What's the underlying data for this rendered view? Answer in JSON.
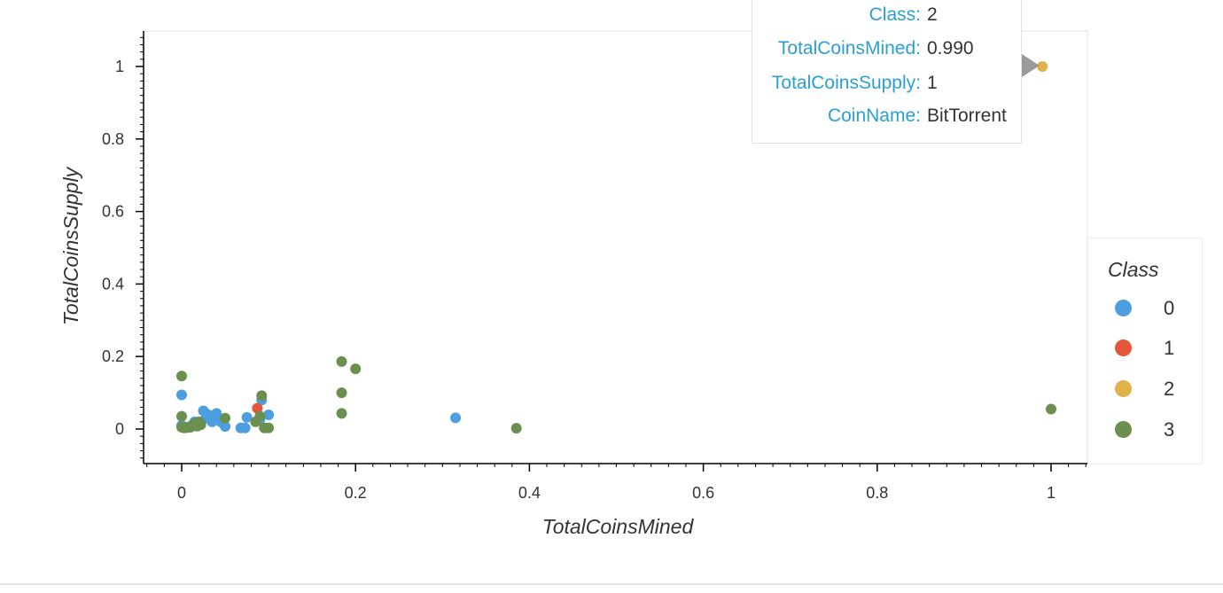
{
  "chart_data": {
    "type": "scatter",
    "title": "",
    "xlabel": "TotalCoinsMined",
    "ylabel": "TotalCoinsSupply",
    "xlim": [
      -0.04,
      1.06
    ],
    "ylim": [
      -0.09,
      1.09
    ],
    "x_ticks": [
      {
        "value": 0,
        "label": "0"
      },
      {
        "value": 0.2,
        "label": "0.2"
      },
      {
        "value": 0.4,
        "label": "0.4"
      },
      {
        "value": 0.6,
        "label": "0.6"
      },
      {
        "value": 0.8,
        "label": "0.8"
      },
      {
        "value": 1,
        "label": "1"
      }
    ],
    "y_ticks": [
      {
        "value": 0,
        "label": "0"
      },
      {
        "value": 0.2,
        "label": "0.2"
      },
      {
        "value": 0.4,
        "label": "0.4"
      },
      {
        "value": 0.6,
        "label": "0.6"
      },
      {
        "value": 0.8,
        "label": "0.8"
      },
      {
        "value": 1,
        "label": "1"
      }
    ],
    "grid": false,
    "legend": {
      "title": "Class",
      "placement": "right"
    },
    "series": [
      {
        "name": "0",
        "color": "#4c9ede",
        "points": [
          [
            0.0,
            0.094
          ],
          [
            0.0,
            0.01
          ],
          [
            0.005,
            0.005
          ],
          [
            0.012,
            0.008
          ],
          [
            0.015,
            0.02
          ],
          [
            0.02,
            0.012
          ],
          [
            0.025,
            0.05
          ],
          [
            0.028,
            0.03
          ],
          [
            0.03,
            0.04
          ],
          [
            0.035,
            0.02
          ],
          [
            0.038,
            0.028
          ],
          [
            0.04,
            0.043
          ],
          [
            0.042,
            0.03
          ],
          [
            0.045,
            0.02
          ],
          [
            0.05,
            0.007
          ],
          [
            0.068,
            0.003
          ],
          [
            0.073,
            0.003
          ],
          [
            0.075,
            0.032
          ],
          [
            0.09,
            0.025
          ],
          [
            0.092,
            0.08
          ],
          [
            0.1,
            0.039
          ],
          [
            0.315,
            0.031
          ]
        ]
      },
      {
        "name": "1",
        "color": "#e4573b",
        "points": [
          [
            0.087,
            0.057
          ]
        ]
      },
      {
        "name": "2",
        "color": "#e2b24a",
        "points": [
          [
            0.99,
            1.0
          ]
        ]
      },
      {
        "name": "3",
        "color": "#6b8f4e",
        "points": [
          [
            0.0,
            0.146
          ],
          [
            0.0,
            0.035
          ],
          [
            0.0,
            0.005
          ],
          [
            0.003,
            0.003
          ],
          [
            0.006,
            0.004
          ],
          [
            0.01,
            0.005
          ],
          [
            0.012,
            0.01
          ],
          [
            0.015,
            0.015
          ],
          [
            0.018,
            0.008
          ],
          [
            0.02,
            0.02
          ],
          [
            0.022,
            0.012
          ],
          [
            0.05,
            0.03
          ],
          [
            0.085,
            0.02
          ],
          [
            0.09,
            0.035
          ],
          [
            0.092,
            0.092
          ],
          [
            0.095,
            0.003
          ],
          [
            0.1,
            0.003
          ],
          [
            0.184,
            0.186
          ],
          [
            0.2,
            0.166
          ],
          [
            0.184,
            0.1
          ],
          [
            0.184,
            0.043
          ],
          [
            0.385,
            0.002
          ],
          [
            1.0,
            0.055
          ]
        ]
      }
    ]
  },
  "tooltip": {
    "rows": [
      {
        "key": "Class",
        "value": "2"
      },
      {
        "key": "TotalCoinsMined",
        "value": "0.990"
      },
      {
        "key": "TotalCoinsSupply",
        "value": "1"
      },
      {
        "key": "CoinName",
        "value": "BitTorrent"
      }
    ]
  },
  "legend": {
    "title": "Class",
    "items": [
      {
        "label": "0",
        "color": "#4c9ede"
      },
      {
        "label": "1",
        "color": "#e4573b"
      },
      {
        "label": "2",
        "color": "#e2b24a"
      },
      {
        "label": "3",
        "color": "#6b8f4e"
      }
    ]
  }
}
